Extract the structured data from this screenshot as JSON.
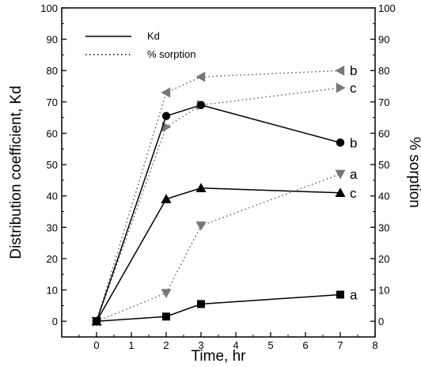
{
  "chart_data": {
    "type": "line",
    "xlabel": "Time, hr",
    "ylabel_left": "Distribution coefficient, Kd",
    "ylabel_right": "% sorption",
    "xlim": [
      -1,
      8
    ],
    "xticks": [
      0,
      1,
      2,
      3,
      4,
      5,
      6,
      7,
      8
    ],
    "ylim_left": [
      -5,
      100
    ],
    "yticks_left": [
      0,
      10,
      20,
      30,
      40,
      50,
      60,
      70,
      80,
      90,
      100
    ],
    "ylim_right": [
      -5,
      100
    ],
    "yticks_right": [
      0,
      10,
      20,
      30,
      40,
      50,
      60,
      70,
      80,
      90,
      100
    ],
    "grid": false,
    "legend": {
      "position": "top-left",
      "entries": [
        {
          "label": "Kd",
          "style": "solid"
        },
        {
          "label": "% sorption",
          "style": "dotted"
        }
      ]
    },
    "series": [
      {
        "label": "a",
        "group": "Kd",
        "axis": "left",
        "marker": "square",
        "color": "#000000",
        "line": "solid",
        "x": [
          0,
          2,
          3,
          7
        ],
        "y": [
          0,
          1.5,
          5.5,
          8.5
        ]
      },
      {
        "label": "b",
        "group": "Kd",
        "axis": "left",
        "marker": "circle",
        "color": "#000000",
        "line": "solid",
        "x": [
          0,
          2,
          3,
          7
        ],
        "y": [
          0,
          65.5,
          69,
          57
        ]
      },
      {
        "label": "c",
        "group": "Kd",
        "axis": "left",
        "marker": "triangle-up",
        "color": "#000000",
        "line": "solid",
        "x": [
          0,
          2,
          3,
          7
        ],
        "y": [
          0,
          39,
          42.5,
          41
        ]
      },
      {
        "label": "a",
        "group": "% sorption",
        "axis": "right",
        "marker": "triangle-down",
        "color": "#777777",
        "line": "dotted",
        "x": [
          0,
          2,
          3,
          7
        ],
        "y": [
          0,
          9,
          30.5,
          47
        ]
      },
      {
        "label": "b",
        "group": "% sorption",
        "axis": "right",
        "marker": "triangle-left",
        "color": "#777777",
        "line": "dotted",
        "x": [
          0,
          2,
          3,
          7
        ],
        "y": [
          0,
          73,
          78,
          80
        ]
      },
      {
        "label": "c",
        "group": "% sorption",
        "axis": "right",
        "marker": "triangle-right",
        "color": "#777777",
        "line": "dotted",
        "x": [
          0,
          2,
          3,
          7
        ],
        "y": [
          0,
          62,
          69,
          74.5
        ]
      }
    ]
  }
}
